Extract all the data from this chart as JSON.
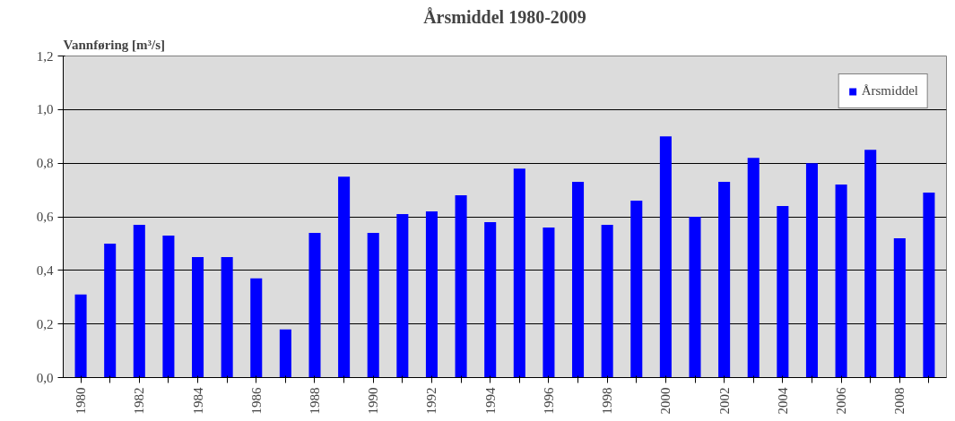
{
  "chart_data": {
    "type": "bar",
    "title": "Årsmiddel 1980-2009",
    "ylabel": "Vannføring [m³/s]",
    "categories": [
      "1980",
      null,
      "1982",
      null,
      "1984",
      null,
      "1986",
      null,
      "1988",
      null,
      "1990",
      null,
      "1992",
      null,
      "1994",
      null,
      "1996",
      null,
      "1998",
      null,
      "2000",
      null,
      "2002",
      null,
      "2004",
      null,
      "2006",
      null,
      "2008",
      null
    ],
    "series": [
      {
        "name": "Årsmiddel",
        "color": "#0000ff",
        "values": [
          0.31,
          0.5,
          0.57,
          0.53,
          0.45,
          0.45,
          0.37,
          0.18,
          0.54,
          0.75,
          0.54,
          0.61,
          0.62,
          0.68,
          0.58,
          0.78,
          0.56,
          0.73,
          0.57,
          0.66,
          0.9,
          0.6,
          0.73,
          0.82,
          0.64,
          0.8,
          0.72,
          0.85,
          0.52,
          0.69
        ]
      }
    ],
    "ylim": [
      0,
      1.2
    ],
    "yticks": [
      {
        "value": 0,
        "label": "0,0"
      },
      {
        "value": 0.2,
        "label": "0,2"
      },
      {
        "value": 0.4,
        "label": "0,4"
      },
      {
        "value": 0.6,
        "label": "0,6"
      },
      {
        "value": 0.8,
        "label": "0,8"
      },
      {
        "value": 1.0,
        "label": "1,0"
      },
      {
        "value": 1.2,
        "label": "1,2"
      }
    ],
    "grid": "y",
    "legend": "top right"
  }
}
